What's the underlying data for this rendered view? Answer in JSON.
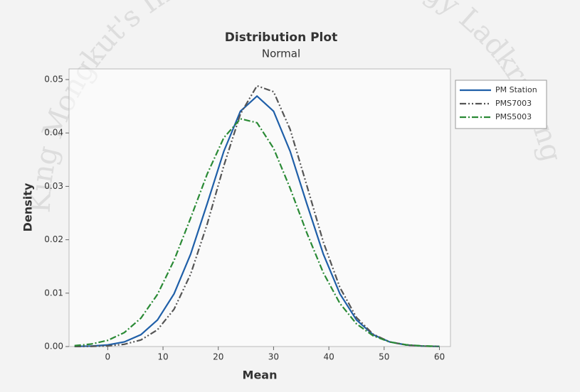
{
  "chart_data": {
    "type": "line",
    "title": "Distribution Plot",
    "subtitle": "Normal",
    "xlabel": "Mean",
    "ylabel": "Density",
    "watermark": "King Mongkut's Institute of Technology Ladkrabang",
    "x": [
      -6,
      -3,
      0,
      3,
      6,
      9,
      12,
      15,
      18,
      21,
      24,
      27,
      30,
      33,
      36,
      39,
      42,
      45,
      48,
      51,
      54,
      57,
      60
    ],
    "series": [
      {
        "name": "PM Station",
        "color": "#1f5fa8",
        "dash": "solid",
        "values": [
          2.49e-05,
          9.24e-05,
          0.000302,
          0.000871,
          0.00222,
          0.00498,
          0.00988,
          0.01731,
          0.02678,
          0.03656,
          0.04407,
          0.0469,
          0.04407,
          0.03656,
          0.02678,
          0.01731,
          0.00988,
          0.00498,
          0.00222,
          0.000871,
          0.000302,
          9.24e-05,
          2.49e-05
        ]
      },
      {
        "name": "PMS7003",
        "color": "#555555",
        "dash": "dash-dot-dot",
        "values": [
          7.3e-06,
          3.24e-05,
          0.000125,
          0.00042,
          0.00123,
          0.00314,
          0.00699,
          0.01357,
          0.02296,
          0.03386,
          0.04355,
          0.04883,
          0.04773,
          0.04066,
          0.03021,
          0.01957,
          0.01105,
          0.00544,
          0.00233,
          0.000873,
          0.000285,
          8.08e-05,
          2.01e-05
        ]
      },
      {
        "name": "PMS5003",
        "color": "#2a8a35",
        "dash": "dash-dot",
        "values": [
          0.000166,
          0.000462,
          0.00116,
          0.00261,
          0.00532,
          0.00977,
          0.01615,
          0.02407,
          0.03233,
          0.03911,
          0.04265,
          0.04192,
          0.03713,
          0.02963,
          0.02132,
          0.01381,
          0.00807,
          0.00425,
          0.00202,
          0.000861,
          0.000332,
          0.000115,
          3.6e-05
        ]
      }
    ],
    "xlim": [
      -7,
      62
    ],
    "ylim": [
      0,
      0.052
    ],
    "xticks": [
      0,
      10,
      20,
      30,
      40,
      50,
      60
    ],
    "yticks": [
      {
        "value": 0,
        "label": "0.00"
      },
      0.01,
      0.02,
      0.03,
      0.04,
      0.05
    ],
    "legend": "outside-right"
  }
}
